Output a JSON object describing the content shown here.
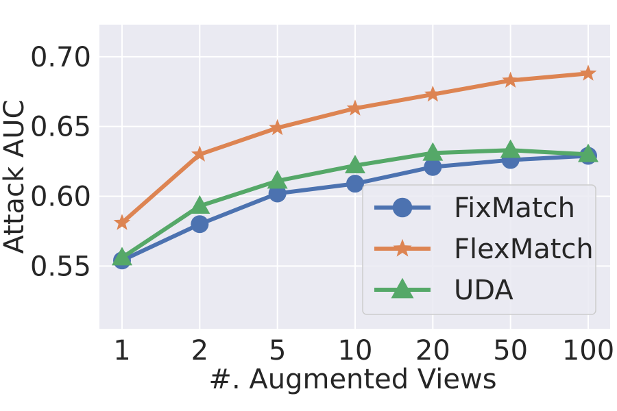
{
  "chart_data": {
    "type": "line",
    "title": "",
    "xlabel": "#. Augmented Views",
    "ylabel": "Attack AUC",
    "categories": [
      "1",
      "2",
      "5",
      "10",
      "20",
      "50",
      "100"
    ],
    "ylim": [
      0.505,
      0.723
    ],
    "yticks": [
      "0.55",
      "0.60",
      "0.65",
      "0.70"
    ],
    "grid": true,
    "legend_position": "bottom-right",
    "series": [
      {
        "name": "FixMatch",
        "marker": "circle",
        "color": "#4c72b0",
        "values": [
          0.554,
          0.58,
          0.602,
          0.609,
          0.621,
          0.626,
          0.629
        ]
      },
      {
        "name": "FlexMatch",
        "marker": "star",
        "color": "#dd8452",
        "values": [
          0.581,
          0.63,
          0.649,
          0.663,
          0.673,
          0.683,
          0.688
        ]
      },
      {
        "name": "UDA",
        "marker": "triangle",
        "color": "#55a868",
        "values": [
          0.556,
          0.593,
          0.611,
          0.622,
          0.631,
          0.633,
          0.63
        ]
      }
    ]
  },
  "colors": {
    "plot_background": "#eaeaf2",
    "grid": "#ffffff",
    "text": "#262626"
  }
}
